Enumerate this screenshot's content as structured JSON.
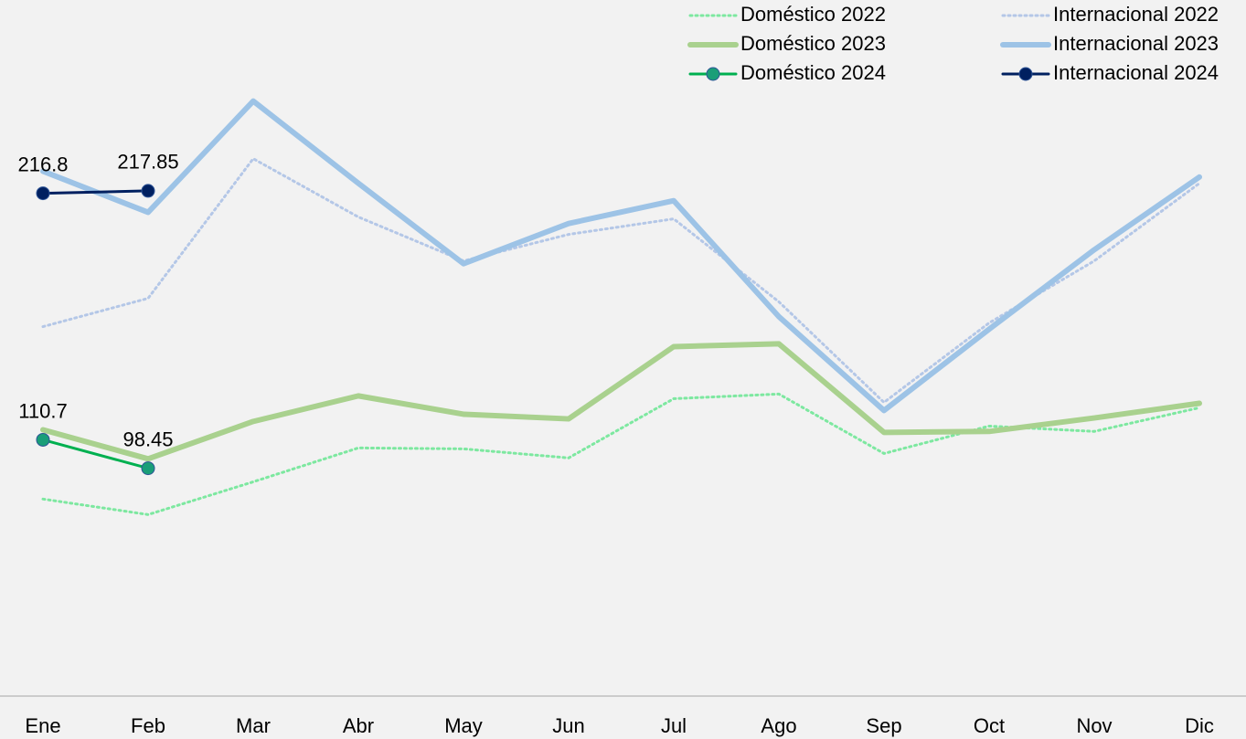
{
  "chart_data": {
    "type": "line",
    "categories": [
      "Ene",
      "Feb",
      "Mar",
      "Abr",
      "May",
      "Jun",
      "Jul",
      "Ago",
      "Sep",
      "Oct",
      "Nov",
      "Dic"
    ],
    "ylim": [
      0,
      300
    ],
    "series": [
      {
        "name": "Doméstico 2022",
        "color": "#7de8a0",
        "style": "dotted",
        "width": 3,
        "values": [
          85.2,
          78.5,
          92.6,
          107.2,
          106.8,
          102.9,
          128.4,
          130.4,
          104.8,
          116.6,
          114.3,
          124.5
        ]
      },
      {
        "name": "Internacional 2022",
        "color": "#b4c7e7",
        "style": "dotted",
        "width": 3,
        "values": [
          159.4,
          171.6,
          231.7,
          206.6,
          187.7,
          199.1,
          205.8,
          170.1,
          126.8,
          161.0,
          187.7,
          221.1
        ]
      },
      {
        "name": "Doméstico 2023",
        "color": "#a9d18e",
        "style": "solid",
        "width": 6,
        "values": [
          115.0,
          102.5,
          118.6,
          129.6,
          121.7,
          119.7,
          150.8,
          152.0,
          113.9,
          114.3,
          120.1,
          126.4
        ]
      },
      {
        "name": "Internacional 2023",
        "color": "#9dc3e6",
        "style": "solid",
        "width": 6,
        "values": [
          226.3,
          208.6,
          256.5,
          221.1,
          186.5,
          203.8,
          213.6,
          163.7,
          123.3,
          158.3,
          192.5,
          223.8
        ]
      },
      {
        "name": "Doméstico 2024",
        "color": "#00b050",
        "marker_color": "#1a9e78",
        "style": "solid",
        "width": 3,
        "markers": true,
        "show_labels": true,
        "values": [
          110.7,
          98.45,
          null,
          null,
          null,
          null,
          null,
          null,
          null,
          null,
          null,
          null
        ]
      },
      {
        "name": "Internacional 2024",
        "color": "#002060",
        "marker_color": "#002060",
        "style": "solid",
        "width": 3,
        "markers": true,
        "show_labels": true,
        "values": [
          216.8,
          217.85,
          null,
          null,
          null,
          null,
          null,
          null,
          null,
          null,
          null,
          null
        ]
      }
    ]
  }
}
